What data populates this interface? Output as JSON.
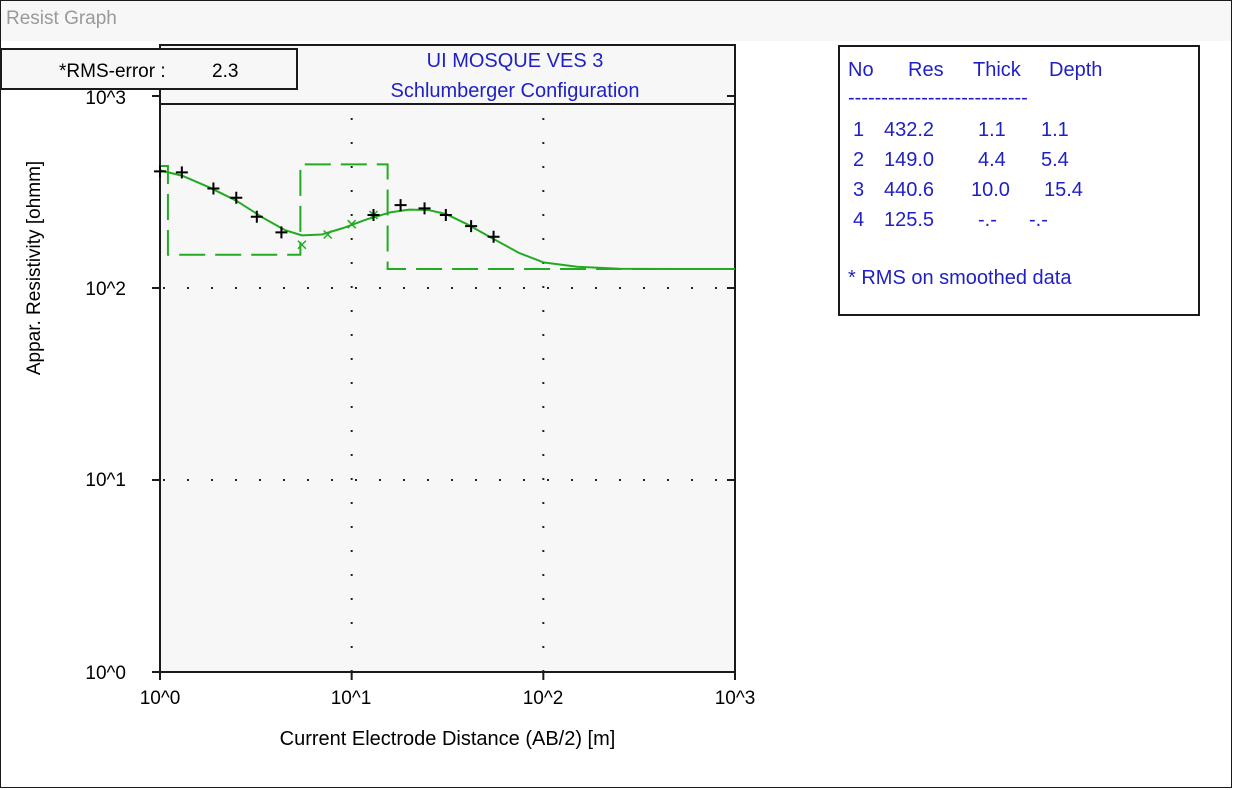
{
  "window": {
    "title": "Resist Graph"
  },
  "rms": {
    "label": "*RMS-error :",
    "value": "2.3"
  },
  "chart_data": {
    "type": "line",
    "title": "UI MOSQUE VES 3",
    "subtitle": "Schlumberger Configuration",
    "xlabel": "Current Electrode Distance (AB/2) [m]",
    "ylabel": "Appar. Resistivity [ohmm]",
    "xscale": "log",
    "yscale": "log",
    "xlim": [
      1,
      1000
    ],
    "ylim": [
      1,
      1000
    ],
    "x_tick_labels": [
      "10^0",
      "10^1",
      "10^2",
      "10^3"
    ],
    "y_tick_labels": [
      "10^0",
      "10^1",
      "10^2",
      "10^3"
    ],
    "grid": "dotted",
    "series": [
      {
        "name": "",
        "kind": "measured (+)",
        "color": "#000000",
        "x": [
          1.0,
          1.3,
          1.9,
          2.5,
          3.2,
          4.3,
          13.0,
          18.0,
          24.0,
          31.0,
          42.0,
          55.0
        ],
        "y": [
          405,
          400,
          330,
          295,
          235,
          195,
          240,
          270,
          260,
          240,
          210,
          185
        ]
      },
      {
        "name": "",
        "kind": "smoothed (x)",
        "color": "#22aa22",
        "x": [
          5.5,
          7.5,
          10.0,
          13.0
        ],
        "y": [
          168,
          190,
          215,
          240
        ]
      },
      {
        "name": "",
        "kind": "model curve",
        "color": "#22aa22",
        "x": [
          1.0,
          1.3,
          1.8,
          2.5,
          3.5,
          4.5,
          5.5,
          7.0,
          9.0,
          12.0,
          16.0,
          20.0,
          25.0,
          31.0,
          40.0,
          55.0,
          75.0,
          100.0,
          150.0,
          250.0,
          500.0,
          1000.0
        ],
        "y": [
          410,
          385,
          335,
          285,
          230,
          200,
          188,
          190,
          205,
          228,
          248,
          256,
          255,
          243,
          215,
          180,
          152,
          136,
          129,
          126,
          125.5,
          125.5
        ]
      },
      {
        "name": "",
        "kind": "layer model (dashed)",
        "color": "#22aa22",
        "x": [
          1.0,
          1.0,
          1.1,
          1.1,
          5.4,
          5.4,
          15.4,
          15.4,
          1000.0
        ],
        "y": [
          432.2,
          432.2,
          432.2,
          149.0,
          149.0,
          440.6,
          440.6,
          125.5,
          125.5
        ]
      }
    ]
  },
  "layer_table": {
    "headers": [
      "No",
      "Res",
      "Thick",
      "Depth"
    ],
    "separator": "---------------------------",
    "rows": [
      [
        "1",
        "432.2",
        "1.1",
        "1.1"
      ],
      [
        "2",
        "149.0",
        "4.4",
        "5.4"
      ],
      [
        "3",
        "440.6",
        "10.0",
        "15.4"
      ],
      [
        "4",
        "125.5",
        "-.-",
        "-.-"
      ]
    ],
    "note": "* RMS on smoothed data"
  }
}
